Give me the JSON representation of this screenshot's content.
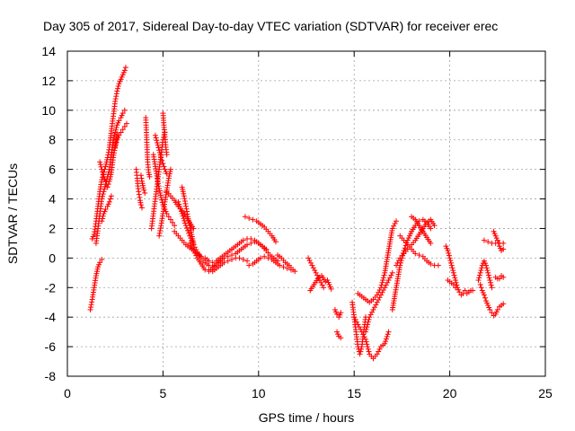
{
  "chart_data": {
    "type": "scatter",
    "title": "Day 305 of 2017, Sidereal Day-to-day VTEC variation (SDTVAR) for receiver erec",
    "xlabel": "GPS time / hours",
    "ylabel": "SDTVAR / TECUs",
    "xlim": [
      0,
      25
    ],
    "ylim": [
      -8,
      14
    ],
    "xticks": [
      0,
      5,
      10,
      15,
      20,
      25
    ],
    "yticks": [
      -8,
      -6,
      -4,
      -2,
      0,
      2,
      4,
      6,
      8,
      10,
      12,
      14
    ],
    "grid": true,
    "marker": "+",
    "color": "#ff0000",
    "series": [
      {
        "name": "SDTVAR",
        "segments": [
          {
            "x": [
              1.2,
              1.3,
              1.4,
              1.5,
              1.6,
              1.7,
              1.8
            ],
            "y": [
              -3.5,
              -2.8,
              -2.0,
              -1.2,
              -0.6,
              -0.3,
              -0.1
            ]
          },
          {
            "x": [
              1.3,
              1.4,
              1.5,
              1.6,
              1.7,
              1.8,
              1.9,
              2.0,
              2.1,
              2.2,
              2.3,
              2.4,
              2.5,
              2.6,
              2.7,
              2.8,
              2.9,
              3.0,
              3.05
            ],
            "y": [
              1.3,
              1.6,
              2.5,
              3.5,
              4.5,
              5.3,
              5.8,
              6.2,
              6.8,
              7.5,
              8.6,
              9.6,
              10.6,
              11.3,
              11.8,
              12.1,
              12.4,
              12.7,
              12.9
            ]
          },
          {
            "x": [
              1.5,
              1.6,
              1.7,
              1.8,
              1.9,
              2.0,
              2.1,
              2.2,
              2.3,
              2.4,
              2.5,
              2.6,
              2.7,
              2.8,
              2.9,
              3.0
            ],
            "y": [
              1.0,
              2.0,
              3.0,
              4.0,
              4.5,
              5.0,
              5.5,
              6.0,
              7.0,
              8.0,
              8.5,
              9.0,
              9.3,
              9.5,
              9.8,
              10.0
            ]
          },
          {
            "x": [
              1.7,
              1.8,
              1.9,
              2.0,
              2.1,
              2.2,
              2.3,
              2.4,
              2.5,
              2.6
            ],
            "y": [
              6.5,
              6.0,
              5.5,
              5.2,
              4.8,
              5.2,
              5.8,
              6.8,
              7.6,
              8.4
            ]
          },
          {
            "x": [
              1.8,
              1.9,
              2.0,
              2.1,
              2.2,
              2.3
            ],
            "y": [
              2.5,
              3.0,
              3.3,
              3.5,
              3.8,
              4.2
            ]
          },
          {
            "x": [
              2.5,
              2.6,
              2.7,
              2.8,
              2.9,
              3.0,
              3.1
            ],
            "y": [
              7.5,
              8.0,
              8.3,
              8.5,
              8.7,
              8.9,
              9.1
            ]
          },
          {
            "x": [
              3.6,
              3.65,
              3.7,
              3.75,
              3.8,
              3.85,
              3.9
            ],
            "y": [
              6.0,
              5.4,
              4.7,
              4.3,
              3.9,
              3.6,
              3.4
            ]
          },
          {
            "x": [
              3.85,
              3.9,
              3.95,
              4.0,
              4.05
            ],
            "y": [
              5.6,
              5.2,
              4.9,
              4.6,
              4.4
            ]
          },
          {
            "x": [
              4.1,
              4.15,
              4.2,
              4.25,
              4.3
            ],
            "y": [
              9.5,
              8.0,
              6.5,
              5.8,
              5.5
            ]
          },
          {
            "x": [
              4.4,
              4.5,
              4.6,
              4.7,
              4.8,
              4.9,
              5.0,
              5.1
            ],
            "y": [
              2.0,
              3.0,
              4.0,
              5.0,
              6.0,
              7.0,
              8.0,
              8.5
            ]
          },
          {
            "x": [
              4.5,
              4.6,
              4.7,
              4.8,
              4.9,
              5.0,
              5.1,
              5.2,
              5.3,
              5.4,
              5.5,
              5.6
            ],
            "y": [
              7.0,
              6.2,
              5.4,
              4.7,
              4.1,
              3.6,
              3.3,
              3.0,
              2.8,
              2.6,
              2.4,
              2.2
            ]
          },
          {
            "x": [
              4.6,
              4.7,
              4.8,
              4.9,
              5.0,
              5.1,
              5.2
            ],
            "y": [
              8.3,
              7.8,
              7.3,
              6.8,
              6.4,
              6.0,
              5.7
            ]
          },
          {
            "x": [
              4.8,
              4.9,
              5.0,
              5.1,
              5.2,
              5.3,
              5.4
            ],
            "y": [
              1.5,
              2.2,
              3.0,
              3.8,
              4.6,
              5.4,
              6.0
            ]
          },
          {
            "x": [
              5.0,
              5.05,
              5.1,
              5.15,
              5.2
            ],
            "y": [
              9.8,
              9.0,
              8.2,
              7.5,
              7.0
            ]
          },
          {
            "x": [
              5.2,
              5.4,
              5.6,
              5.8,
              6.0,
              6.2,
              6.4,
              6.6
            ],
            "y": [
              4.5,
              4.2,
              3.9,
              3.5,
              3.2,
              2.8,
              2.4,
              2.0
            ]
          },
          {
            "x": [
              5.6,
              5.8,
              6.0,
              6.2,
              6.4,
              6.6,
              6.8,
              7.0,
              7.2,
              7.4,
              7.6,
              7.8,
              8.0,
              8.2,
              8.4,
              8.6,
              8.8,
              9.0,
              9.2,
              9.4,
              9.6,
              9.8,
              10.0,
              10.2,
              10.4,
              10.6,
              10.8,
              11.0
            ],
            "y": [
              1.8,
              1.5,
              1.2,
              0.9,
              0.7,
              0.5,
              0.3,
              0.1,
              0.0,
              -0.2,
              -0.3,
              -0.2,
              0.0,
              0.2,
              0.4,
              0.6,
              0.8,
              1.0,
              1.2,
              1.3,
              1.3,
              1.2,
              1.0,
              0.8,
              0.5,
              0.2,
              0.0,
              -0.2
            ]
          },
          {
            "x": [
              5.8,
              6.0,
              6.2,
              6.4,
              6.6,
              6.8,
              7.0,
              7.2,
              7.4,
              7.6,
              7.8,
              8.0,
              8.2,
              8.4,
              8.6,
              8.8,
              9.0,
              9.2,
              9.4,
              9.6,
              9.8,
              10.0,
              10.2,
              10.4
            ],
            "y": [
              3.8,
              3.0,
              2.2,
              1.5,
              0.9,
              0.4,
              0.0,
              -0.3,
              -0.5,
              -0.6,
              -0.4,
              -0.2,
              0.0,
              0.1,
              0.2,
              0.3,
              0.5,
              0.7,
              0.9,
              1.0,
              1.1,
              1.0,
              0.8,
              0.6
            ]
          },
          {
            "x": [
              6.0,
              6.1,
              6.2,
              6.3,
              6.4,
              6.5,
              6.6
            ],
            "y": [
              4.8,
              4.2,
              3.5,
              2.8,
              2.2,
              1.6,
              1.0
            ]
          },
          {
            "x": [
              6.4,
              6.6,
              6.8,
              7.0,
              7.2,
              7.4,
              7.6,
              7.8,
              8.0
            ],
            "y": [
              1.0,
              0.5,
              0.0,
              -0.4,
              -0.8,
              -0.9,
              -0.7,
              -0.4,
              -0.2
            ]
          },
          {
            "x": [
              7.4,
              7.6,
              7.8,
              8.0,
              8.2,
              8.4,
              8.6,
              8.8,
              9.0,
              9.2,
              9.4
            ],
            "y": [
              -0.8,
              -0.9,
              -0.7,
              -0.5,
              -0.3,
              -0.2,
              -0.1,
              0.0,
              0.0,
              -0.1,
              -0.2
            ]
          },
          {
            "x": [
              9.3,
              9.5,
              9.7,
              9.9,
              10.1,
              10.3,
              10.5,
              10.7,
              10.9
            ],
            "y": [
              2.8,
              2.7,
              2.6,
              2.5,
              2.3,
              2.1,
              1.8,
              1.5,
              1.1
            ]
          },
          {
            "x": [
              9.5,
              9.7,
              9.9,
              10.1,
              10.3,
              10.5,
              10.7,
              10.9,
              11.1,
              11.3,
              11.5,
              11.7,
              11.9
            ],
            "y": [
              -0.5,
              -0.4,
              -0.2,
              0.0,
              0.1,
              0.0,
              -0.1,
              -0.3,
              -0.5,
              -0.6,
              -0.7,
              -0.8,
              -0.9
            ]
          },
          {
            "x": [
              11.0,
              11.2,
              11.4,
              11.6,
              11.8
            ],
            "y": [
              0.2,
              0.0,
              -0.3,
              -0.5,
              -0.8
            ]
          },
          {
            "x": [
              12.6,
              12.8,
              13.0,
              13.2,
              13.4
            ],
            "y": [
              0.0,
              -0.5,
              -1.0,
              -1.5,
              -2.0
            ]
          },
          {
            "x": [
              12.7,
              12.9,
              13.1,
              13.3,
              13.5
            ],
            "y": [
              -2.2,
              -1.8,
              -1.4,
              -1.2,
              -1.6
            ]
          },
          {
            "x": [
              13.6,
              13.7,
              13.8
            ],
            "y": [
              -1.5,
              -1.8,
              -2.1
            ]
          },
          {
            "x": [
              14.0,
              14.1,
              14.2,
              14.3
            ],
            "y": [
              -3.5,
              -3.8,
              -4.0,
              -3.7
            ]
          },
          {
            "x": [
              14.1,
              14.2,
              14.3
            ],
            "y": [
              -5.0,
              -5.3,
              -5.4
            ]
          },
          {
            "x": [
              14.9,
              15.0,
              15.1,
              15.2,
              15.3,
              15.4,
              15.5,
              15.6
            ],
            "y": [
              -3.0,
              -4.0,
              -5.0,
              -6.0,
              -6.5,
              -6.0,
              -5.0,
              -4.0
            ]
          },
          {
            "x": [
              15.0,
              15.2,
              15.4,
              15.6,
              15.8,
              16.0,
              16.2,
              16.4,
              16.6,
              16.8
            ],
            "y": [
              -4.0,
              -4.5,
              -5.0,
              -5.5,
              -6.5,
              -6.8,
              -6.5,
              -6.0,
              -5.8,
              -5.0
            ]
          },
          {
            "x": [
              15.2,
              15.4,
              15.6,
              15.8,
              16.0,
              16.2,
              16.4,
              16.6,
              16.8,
              17.0,
              17.2
            ],
            "y": [
              -2.4,
              -2.6,
              -2.8,
              -3.0,
              -2.8,
              -2.5,
              -2.0,
              -1.0,
              0.5,
              2.0,
              2.5
            ]
          },
          {
            "x": [
              15.6,
              15.8,
              16.0,
              16.2,
              16.4,
              16.6,
              16.8,
              17.0
            ],
            "y": [
              -5.0,
              -4.0,
              -3.5,
              -3.0,
              -2.5,
              -2.0,
              -1.5,
              -1.0
            ]
          },
          {
            "x": [
              17.0,
              17.2,
              17.4,
              17.6,
              17.8,
              18.0,
              18.2,
              18.4,
              18.6,
              18.8,
              19.0
            ],
            "y": [
              -3.5,
              -2.0,
              -0.5,
              0.5,
              1.2,
              1.8,
              2.2,
              2.5,
              2.6,
              2.4,
              2.0
            ]
          },
          {
            "x": [
              17.2,
              17.4,
              17.6,
              17.8,
              18.0,
              18.2,
              18.4,
              18.6,
              18.8,
              19.0,
              19.2
            ],
            "y": [
              -0.5,
              0.0,
              0.3,
              0.6,
              0.9,
              1.2,
              1.6,
              2.0,
              2.4,
              2.6,
              2.2
            ]
          },
          {
            "x": [
              17.4,
              17.6,
              17.8,
              18.0,
              18.2,
              18.4,
              18.6,
              18.8,
              19.0,
              19.2,
              19.4
            ],
            "y": [
              1.5,
              1.2,
              0.9,
              0.6,
              0.3,
              0.2,
              0.1,
              -0.2,
              -0.4,
              -0.5,
              -0.5
            ]
          },
          {
            "x": [
              18.0,
              18.2,
              18.4,
              18.6,
              18.8,
              19.0
            ],
            "y": [
              2.8,
              2.6,
              2.2,
              1.8,
              1.4,
              1.0
            ]
          },
          {
            "x": [
              19.8,
              19.9,
              20.0,
              20.1,
              20.2,
              20.3,
              20.4,
              20.5,
              20.6,
              20.7,
              20.8
            ],
            "y": [
              0.8,
              0.5,
              0.0,
              -0.5,
              -1.0,
              -1.5,
              -2.0,
              -2.3,
              -2.5,
              -2.4,
              -2.2
            ]
          },
          {
            "x": [
              19.9,
              20.0,
              20.1,
              20.2,
              20.3
            ],
            "y": [
              -1.5,
              -1.6,
              -1.7,
              -1.8,
              -2.0
            ]
          },
          {
            "x": [
              20.9,
              21.0,
              21.1,
              21.2
            ],
            "y": [
              -2.4,
              -2.3,
              -2.2,
              -2.2
            ]
          },
          {
            "x": [
              21.5,
              21.6,
              21.7,
              21.8,
              21.9,
              22.0,
              22.1,
              22.2
            ],
            "y": [
              -1.5,
              -1.0,
              -0.5,
              -0.2,
              -0.5,
              -1.0,
              -1.5,
              -2.0
            ]
          },
          {
            "x": [
              21.6,
              21.7,
              21.8,
              21.9,
              22.0,
              22.1,
              22.2,
              22.3,
              22.4,
              22.5,
              22.6,
              22.7,
              22.8
            ],
            "y": [
              -1.8,
              -2.2,
              -2.5,
              -2.9,
              -3.2,
              -3.5,
              -3.7,
              -3.9,
              -3.8,
              -3.5,
              -3.3,
              -3.2,
              -3.1
            ]
          },
          {
            "x": [
              21.8,
              22.0,
              22.2,
              22.4,
              22.6,
              22.8
            ],
            "y": [
              1.2,
              1.1,
              1.0,
              1.0,
              1.0,
              1.0
            ]
          },
          {
            "x": [
              22.3,
              22.4,
              22.5,
              22.6,
              22.7,
              22.8
            ],
            "y": [
              1.8,
              1.5,
              1.2,
              0.8,
              0.5,
              0.6
            ]
          },
          {
            "x": [
              22.4,
              22.5,
              22.6,
              22.7,
              22.8
            ],
            "y": [
              -1.3,
              -1.4,
              -1.4,
              -1.2,
              -1.3
            ]
          }
        ]
      }
    ]
  }
}
